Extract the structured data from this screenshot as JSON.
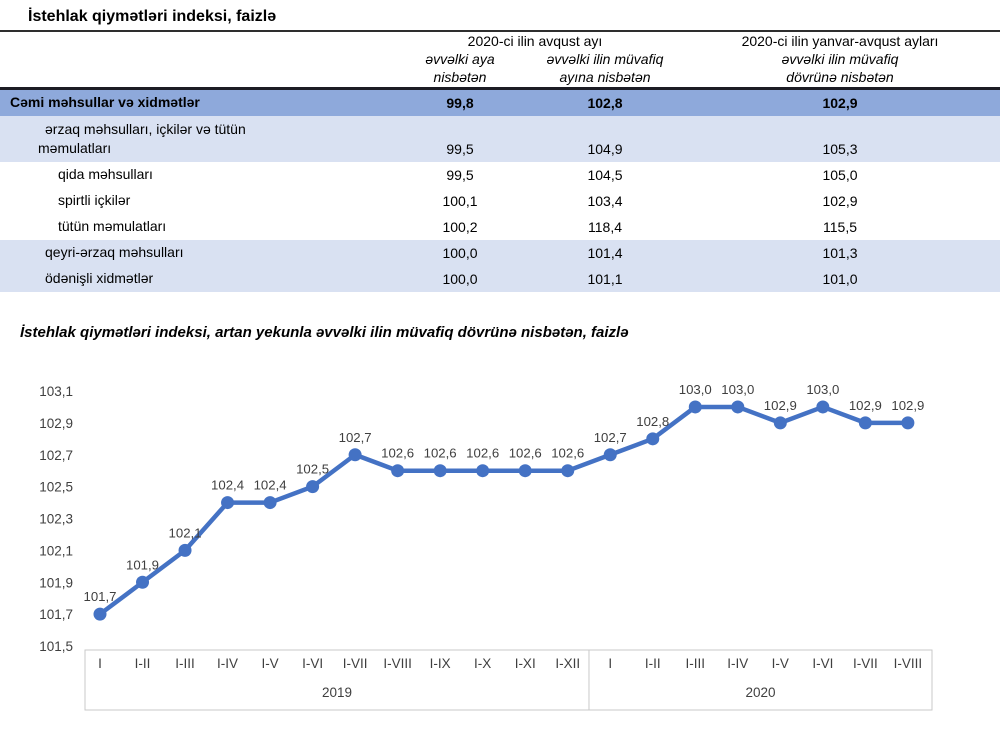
{
  "table_section": {
    "title": "İstehlak qiymətləri indeksi, faizlə",
    "columns": {
      "group1": "2020-ci ilin avqust ayı",
      "group1_sub1": "əvvəlki aya\nnisbətən",
      "group1_sub2": "əvvəlki ilin müvafiq\nayına nisbətən",
      "group2": "2020-ci ilin yanvar-avqust ayları",
      "group2_sub": "əvvəlki ilin müvafiq\ndövrünə nisbətən"
    },
    "rows": [
      {
        "label": "Cəmi məhsullar və xidmətlər",
        "values": [
          "99,8",
          "102,8",
          "102,9"
        ]
      },
      {
        "label": "ərzaq məhsulları, içkilər və tütün\nməmulatları",
        "values": [
          "99,5",
          "104,9",
          "105,3"
        ]
      },
      {
        "label": "qida məhsulları",
        "values": [
          "99,5",
          "104,5",
          "105,0"
        ]
      },
      {
        "label": "spirtli içkilər",
        "values": [
          "100,1",
          "103,4",
          "102,9"
        ]
      },
      {
        "label": "tütün məmulatları",
        "values": [
          "100,2",
          "118,4",
          "115,5"
        ]
      },
      {
        "label": "qeyri-ərzaq məhsulları",
        "values": [
          "100,0",
          "101,4",
          "101,3"
        ]
      },
      {
        "label": "ödənişli xidmətlər",
        "values": [
          "100,0",
          "101,1",
          "101,0"
        ]
      }
    ]
  },
  "chart_section": {
    "title": "İstehlak qiymətləri indeksi, artan yekunla əvvəlki ilin müvafiq dövrünə nisbətən, faizlə"
  },
  "chart_data": {
    "type": "line",
    "x": [
      "I",
      "I-II",
      "I-III",
      "I-IV",
      "I-V",
      "I-VI",
      "I-VII",
      "I-VIII",
      "I-IX",
      "I-X",
      "I-XI",
      "I-XII",
      "I",
      "I-II",
      "I-III",
      "I-IV",
      "I-V",
      "I-VI",
      "I-VII",
      "I-VIII"
    ],
    "x_groups": [
      {
        "label": "2019",
        "count": 12
      },
      {
        "label": "2020",
        "count": 8
      }
    ],
    "series": [
      {
        "name": "İstehlak qiymətləri indeksi, artan yekunla",
        "values": [
          101.7,
          101.9,
          102.1,
          102.4,
          102.4,
          102.5,
          102.7,
          102.6,
          102.6,
          102.6,
          102.6,
          102.6,
          102.7,
          102.8,
          103.0,
          103.0,
          102.9,
          103.0,
          102.9,
          102.9
        ]
      }
    ],
    "data_labels": [
      "101,7",
      "101,9",
      "102,1",
      "102,4",
      "102,4",
      "102,5",
      "102,7",
      "102,6",
      "102,6",
      "102,6",
      "102,6",
      "102,6",
      "102,7",
      "102,8",
      "103,0",
      "103,0",
      "102,9",
      "103,0",
      "102,9",
      "102,9"
    ],
    "y_ticks": [
      "103,1",
      "102,9",
      "102,7",
      "102,5",
      "102,3",
      "102,1",
      "101,9",
      "101,7",
      "101,5"
    ],
    "ylim": [
      101.5,
      103.1
    ],
    "grid": false,
    "legend": "none",
    "line_color": "#4472C4"
  },
  "colors": {
    "line": "#4472C4",
    "row_total_bg": "#8EA9DB",
    "row_group_bg": "#D9E1F2"
  }
}
